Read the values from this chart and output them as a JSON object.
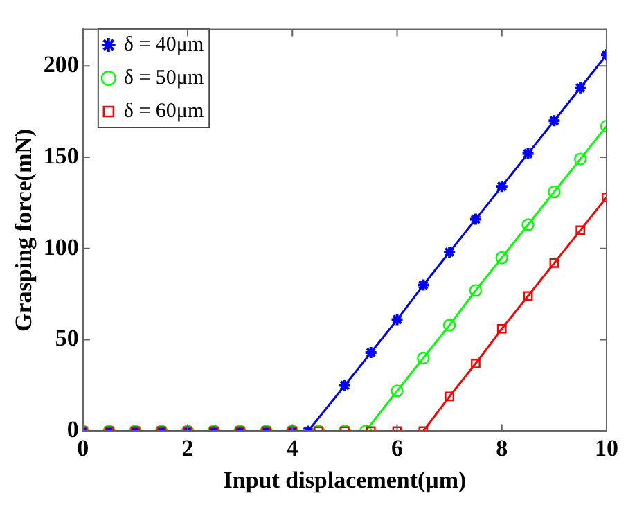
{
  "chart_data": {
    "type": "line",
    "xlabel": "Input displacement(μm)",
    "ylabel": "Grasping force(mN)",
    "xlim": [
      0,
      10
    ],
    "ylim": [
      0,
      220
    ],
    "xticks": [
      0,
      2,
      4,
      6,
      8,
      10
    ],
    "yticks": [
      0,
      50,
      100,
      150,
      200
    ],
    "grid": false,
    "legend": "top left",
    "line_style": "solid",
    "series": [
      {
        "name": "δ = 40μm",
        "color": "#0000ff",
        "marker": "cross",
        "x": [
          0,
          0.5,
          1,
          1.5,
          2,
          2.5,
          3,
          3.5,
          4,
          4.3,
          5,
          5.5,
          6,
          6.5,
          7,
          7.5,
          8,
          8.5,
          9,
          9.5,
          10
        ],
        "values": [
          0,
          0,
          0,
          0,
          0,
          0,
          0,
          0,
          0,
          0,
          25,
          43,
          61,
          80,
          98,
          116,
          134,
          152,
          170,
          188,
          206
        ]
      },
      {
        "name": "δ = 50μm",
        "color": "#00ff00",
        "marker": "circle",
        "x": [
          0,
          0.5,
          1,
          1.5,
          2,
          2.5,
          3,
          3.5,
          4,
          4.5,
          5,
          5.4,
          6,
          6.5,
          7,
          7.5,
          8,
          8.5,
          9,
          9.5,
          10
        ],
        "values": [
          0,
          0,
          0,
          0,
          0,
          0,
          0,
          0,
          0,
          0,
          0,
          0,
          22,
          40,
          58,
          77,
          95,
          113,
          131,
          149,
          167
        ]
      },
      {
        "name": "δ = 60μm",
        "color": "#ff0000",
        "marker": "square",
        "x": [
          0,
          0.5,
          1,
          1.5,
          2,
          2.5,
          3,
          3.5,
          4,
          4.5,
          5,
          5.5,
          6,
          6.5,
          7,
          7.5,
          8,
          8.5,
          9,
          9.5,
          10
        ],
        "values": [
          0,
          0,
          0,
          0,
          0,
          0,
          0,
          0,
          0,
          0,
          0,
          0,
          0,
          0,
          19,
          37,
          56,
          74,
          92,
          110,
          128
        ]
      }
    ]
  }
}
